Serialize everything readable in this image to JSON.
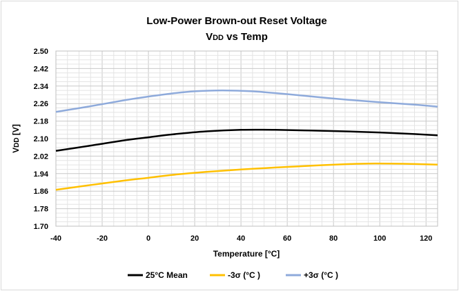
{
  "chart_data": {
    "type": "line",
    "title": "Low-Power Brown-out Reset Voltage",
    "subtitle_main": "V",
    "subtitle_sub": "DD",
    "subtitle_rest": " vs Temp",
    "xlabel": "Temperature [°C]",
    "ylabel_main": "V",
    "ylabel_sub": "DD",
    "ylabel_rest": " [V]",
    "xlim": [
      -40,
      125
    ],
    "ylim": [
      1.7,
      2.5
    ],
    "x_ticks": [
      -40,
      -20,
      0,
      20,
      40,
      60,
      80,
      100,
      120
    ],
    "y_ticks": [
      1.7,
      1.78,
      1.86,
      1.94,
      2.02,
      2.1,
      2.18,
      2.26,
      2.34,
      2.42,
      2.5
    ],
    "y_tick_labels": [
      "1.70",
      "1.78",
      "1.86",
      "1.94",
      "2.02",
      "2.10",
      "2.18",
      "2.26",
      "2.34",
      "2.42",
      "2.50"
    ],
    "series": [
      {
        "name": "25°C Mean",
        "color": "#000000",
        "x": [
          -40,
          -25,
          -10,
          0,
          10,
          25,
          40,
          55,
          70,
          85,
          100,
          115,
          125
        ],
        "y": [
          2.044,
          2.068,
          2.093,
          2.106,
          2.119,
          2.133,
          2.14,
          2.14,
          2.137,
          2.133,
          2.128,
          2.121,
          2.115
        ]
      },
      {
        "name": "-3σ (°C )",
        "color": "#ffc000",
        "x": [
          -40,
          -25,
          -10,
          0,
          10,
          25,
          40,
          55,
          70,
          85,
          95,
          110,
          125
        ],
        "y": [
          1.866,
          1.888,
          1.909,
          1.921,
          1.934,
          1.948,
          1.959,
          1.968,
          1.976,
          1.983,
          1.986,
          1.985,
          1.981
        ]
      },
      {
        "name": "+3σ (°C )",
        "color": "#8eaadb",
        "x": [
          -40,
          -25,
          -10,
          0,
          10,
          20,
          32,
          45,
          60,
          80,
          100,
          115,
          125
        ],
        "y": [
          2.222,
          2.248,
          2.276,
          2.292,
          2.306,
          2.316,
          2.32,
          2.316,
          2.303,
          2.283,
          2.266,
          2.255,
          2.246
        ]
      }
    ],
    "grid": true,
    "legend_position": "bottom"
  }
}
